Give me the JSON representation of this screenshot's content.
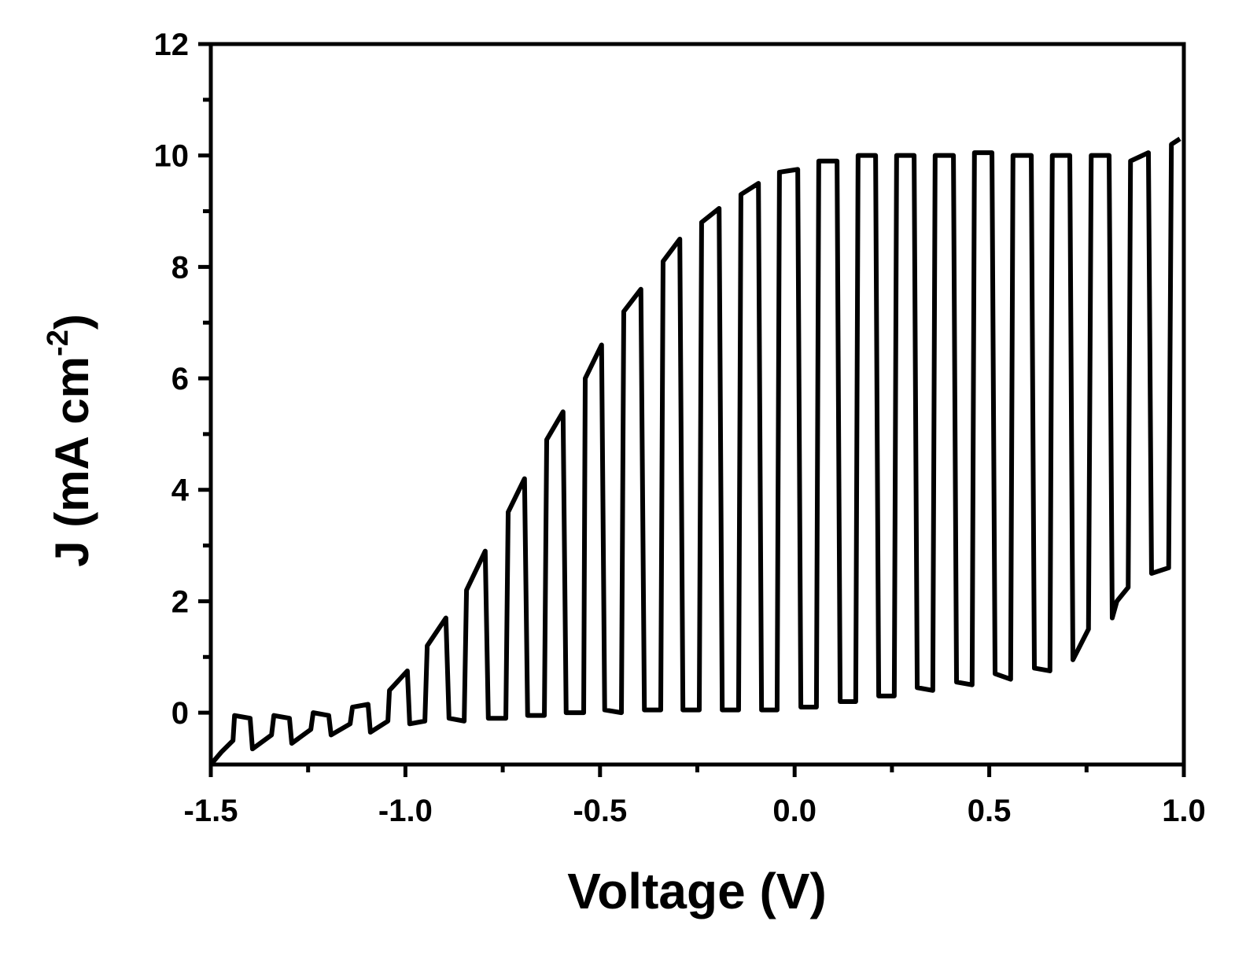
{
  "chart_data": {
    "type": "line",
    "xlabel": "Voltage (V)",
    "ylabel": [
      "J (mA cm",
      "-2",
      ")"
    ],
    "xlim": [
      -1.5,
      1.0
    ],
    "ylim": [
      -0.93,
      12
    ],
    "xticks": [
      -1.5,
      {
        "value": -1,
        "label": "-1.0"
      },
      -0.5,
      {
        "value": 0,
        "label": "0.0"
      },
      0.5,
      {
        "value": 1,
        "label": "1.0"
      }
    ],
    "xminorticks": [
      -1.25,
      -0.75,
      -0.25,
      0.25,
      0.75
    ],
    "yticks": [
      0,
      2,
      4,
      6,
      8,
      10,
      12
    ],
    "yminorticks": [
      1,
      3,
      5,
      7,
      9,
      11
    ],
    "x": [
      -1.5,
      -1.472,
      -1.443,
      -1.439,
      -1.399,
      -1.393,
      -1.344,
      -1.338,
      -1.298,
      -1.292,
      -1.243,
      -1.237,
      -1.197,
      -1.191,
      -1.142,
      -1.136,
      -1.096,
      -1.09,
      -1.045,
      -1.041,
      -0.995,
      -0.989,
      -0.95,
      -0.944,
      -0.896,
      -0.888,
      -0.849,
      -0.843,
      -0.795,
      -0.787,
      -0.742,
      -0.736,
      -0.694,
      -0.686,
      -0.643,
      -0.637,
      -0.595,
      -0.587,
      -0.542,
      -0.538,
      -0.496,
      -0.488,
      -0.445,
      -0.439,
      -0.395,
      -0.386,
      -0.344,
      -0.338,
      -0.295,
      -0.287,
      -0.245,
      -0.239,
      -0.194,
      -0.186,
      -0.144,
      -0.138,
      -0.093,
      -0.085,
      -0.045,
      -0.039,
      0.008,
      0.016,
      0.056,
      0.062,
      0.109,
      0.117,
      0.157,
      0.163,
      0.208,
      0.216,
      0.256,
      0.262,
      0.307,
      0.315,
      0.355,
      0.361,
      0.408,
      0.416,
      0.456,
      0.462,
      0.507,
      0.515,
      0.555,
      0.561,
      0.608,
      0.616,
      0.656,
      0.662,
      0.707,
      0.715,
      0.755,
      0.762,
      0.808,
      0.816,
      0.828,
      0.857,
      0.863,
      0.909,
      0.917,
      0.961,
      0.968,
      0.99
    ],
    "series": [
      {
        "color": "#000000",
        "values": [
          -0.93,
          -0.7,
          -0.5,
          -0.05,
          -0.1,
          -0.65,
          -0.4,
          -0.05,
          -0.1,
          -0.55,
          -0.3,
          0.0,
          -0.05,
          -0.4,
          -0.2,
          0.1,
          0.15,
          -0.35,
          -0.15,
          0.4,
          0.75,
          -0.2,
          -0.15,
          1.2,
          1.7,
          -0.1,
          -0.15,
          2.2,
          2.9,
          -0.1,
          -0.1,
          3.6,
          4.2,
          -0.05,
          -0.05,
          4.9,
          5.4,
          0.0,
          0.0,
          6.0,
          6.6,
          0.05,
          0.0,
          7.2,
          7.6,
          0.05,
          0.05,
          8.1,
          8.5,
          0.05,
          0.05,
          8.8,
          9.05,
          0.05,
          0.05,
          9.3,
          9.5,
          0.05,
          0.05,
          9.7,
          9.75,
          0.1,
          0.1,
          9.9,
          9.9,
          0.2,
          0.2,
          10.0,
          10.0,
          0.3,
          0.3,
          10.0,
          10.0,
          0.45,
          0.4,
          10.0,
          10.0,
          0.55,
          0.5,
          10.05,
          10.05,
          0.7,
          0.6,
          10.0,
          10.0,
          0.8,
          0.75,
          10.0,
          10.0,
          0.95,
          1.5,
          10.0,
          10.0,
          1.7,
          2.0,
          2.25,
          9.9,
          10.05,
          2.5,
          2.6,
          10.2,
          10.3
        ]
      }
    ]
  }
}
